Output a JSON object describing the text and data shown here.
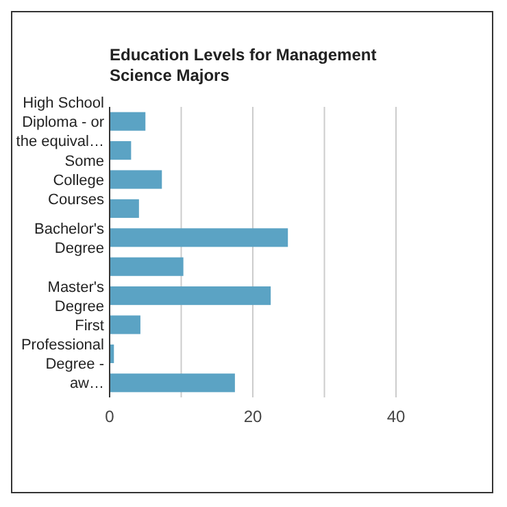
{
  "chart_data": {
    "type": "bar",
    "orientation": "horizontal",
    "title": "Education Levels for Management Science Majors",
    "categories": [
      "High School Diploma - or the equival…",
      null,
      "Some College Courses",
      null,
      "Bachelor's Degree",
      null,
      "Master's Degree",
      null,
      "First Professional Degree - aw…",
      null
    ],
    "values": [
      5.0,
      3.0,
      7.3,
      4.1,
      24.9,
      10.3,
      22.5,
      4.3,
      0.6,
      17.5
    ],
    "color": "#5ba3c4",
    "xlim": [
      0,
      40
    ],
    "xticks": [
      0,
      {
        "value": 10,
        "label": null
      },
      20,
      {
        "value": 30,
        "label": null
      },
      40
    ],
    "grid": "x"
  }
}
